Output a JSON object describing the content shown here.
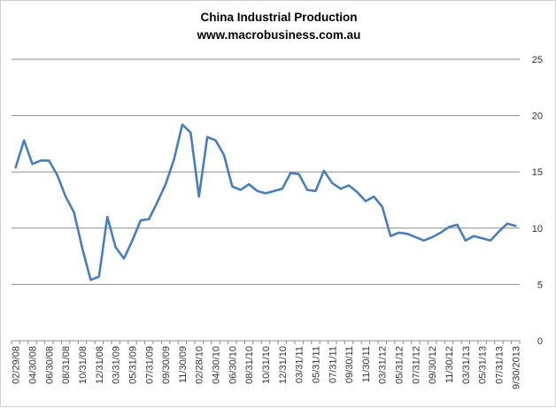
{
  "chart_data": {
    "type": "line",
    "title": "China Industrial Production",
    "subtitle": "www.macrobusiness.com.au",
    "xlabel": "",
    "ylabel": "",
    "ylim": [
      0,
      25
    ],
    "yticks": [
      0,
      5,
      10,
      15,
      20,
      25
    ],
    "y_axis_side": "right",
    "grid": true,
    "legend": "none",
    "line_color": "#4a7ebb",
    "x_tick_labels": [
      "02/29/08",
      "04/30/08",
      "06/30/08",
      "08/31/08",
      "10/31/08",
      "12/31/08",
      "03/31/09",
      "05/31/09",
      "07/31/09",
      "09/30/09",
      "11/30/09",
      "02/28/10",
      "04/30/10",
      "06/30/10",
      "08/31/10",
      "10/31/10",
      "12/31/10",
      "03/31/11",
      "05/31/11",
      "07/31/11",
      "09/30/11",
      "11/30/11",
      "03/31/12",
      "05/31/12",
      "07/31/12",
      "09/30/12",
      "11/30/12",
      "03/31/13",
      "05/31/13",
      "07/31/13",
      "9/30/2013"
    ],
    "series": [
      {
        "values": [
          15.4,
          17.8,
          15.7,
          16.0,
          16.0,
          14.7,
          12.8,
          11.4,
          8.2,
          5.4,
          5.7,
          11.0,
          8.3,
          7.3,
          8.9,
          10.7,
          10.8,
          12.3,
          13.9,
          16.1,
          19.2,
          18.5,
          12.8,
          18.1,
          17.8,
          16.5,
          13.7,
          13.4,
          13.9,
          13.3,
          13.1,
          13.3,
          13.5,
          14.9,
          14.8,
          13.4,
          13.3,
          15.1,
          14.0,
          13.5,
          13.8,
          13.2,
          12.4,
          12.8,
          11.9,
          9.3,
          9.6,
          9.5,
          9.2,
          8.9,
          9.2,
          9.6,
          10.1,
          10.3,
          8.9,
          9.3,
          9.1,
          8.9,
          9.7,
          10.4,
          10.2
        ]
      }
    ]
  }
}
